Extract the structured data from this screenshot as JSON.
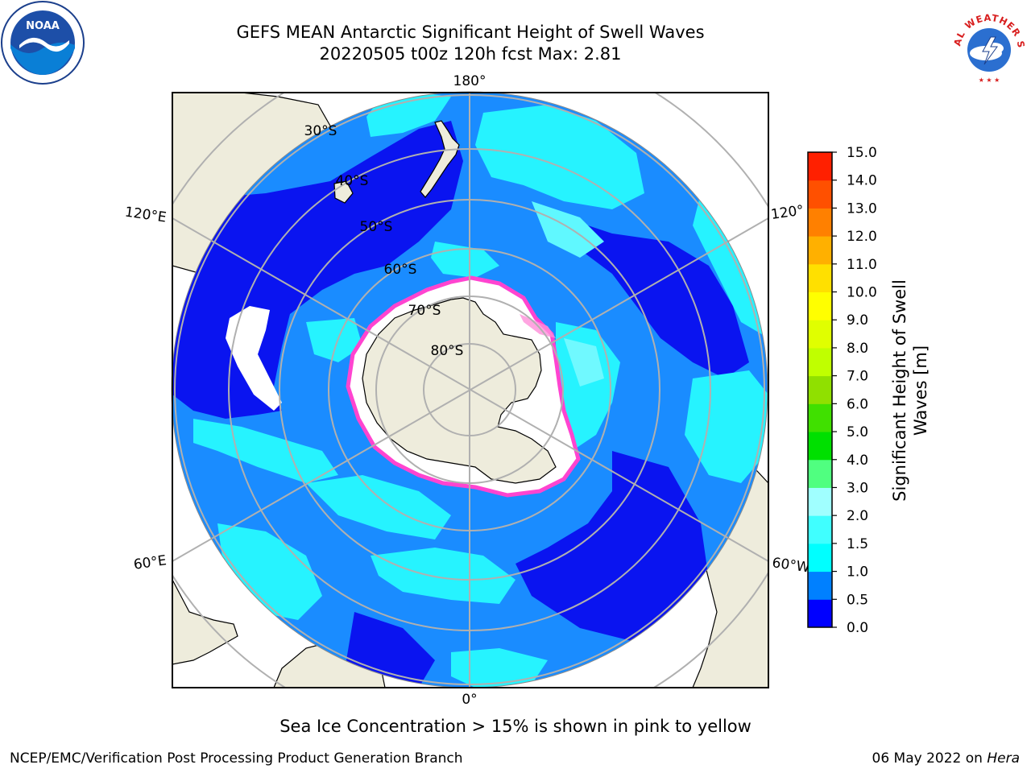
{
  "header": {
    "title_line1": "GEFS MEAN Antarctic Significant Height of Swell Waves",
    "title_line2": "20220505 t00z 120h fcst   Max: 2.81"
  },
  "logos": {
    "left": {
      "icon": "noaa-logo-icon",
      "text": "NOAA"
    },
    "right": {
      "icon": "national-weather-service-logo-icon",
      "text": "NATIONAL WEATHER SERVICE"
    }
  },
  "map": {
    "projection": "south polar stereographic",
    "longitude_labels": {
      "top": "180°",
      "bottom": "0°",
      "upper_left": "120°E",
      "lower_left": "60°E",
      "upper_right": "120°",
      "lower_right": "60°W"
    },
    "latitude_labels": [
      "30°S",
      "40°S",
      "50°S",
      "60°S",
      "70°S",
      "80°S"
    ],
    "colors": {
      "land": "#eeecdc",
      "ocean_base": "#1a8cff",
      "low_swell": "#0a14f0",
      "moderate_swell": "#26f3ff",
      "ice_edge": "#ff44d0",
      "ice": "#ffffff",
      "gridline": "#b0b0b0"
    }
  },
  "colorbar": {
    "label": "Significant Height of Swell Waves [m]",
    "ticks": [
      "0.0",
      "0.5",
      "1.0",
      "1.5",
      "2.0",
      "3.0",
      "4.0",
      "5.0",
      "6.0",
      "7.0",
      "8.0",
      "9.0",
      "10.0",
      "11.0",
      "12.0",
      "13.0",
      "14.0",
      "15.0"
    ],
    "colors": [
      "#0000ff",
      "#0080ff",
      "#00ffff",
      "#40ffff",
      "#a0ffff",
      "#50ff80",
      "#00e000",
      "#40e000",
      "#90e000",
      "#c0ff00",
      "#e0ff00",
      "#ffff00",
      "#ffe000",
      "#ffb000",
      "#ff8000",
      "#ff5000",
      "#ff2000"
    ]
  },
  "annotation": "Sea Ice Concentration > 15% is shown in pink to yellow",
  "footer": {
    "left": "NCEP/EMC/Verification Post Processing Product Generation Branch",
    "right_prefix": "06 May 2022 on ",
    "right_machine": "Hera"
  }
}
